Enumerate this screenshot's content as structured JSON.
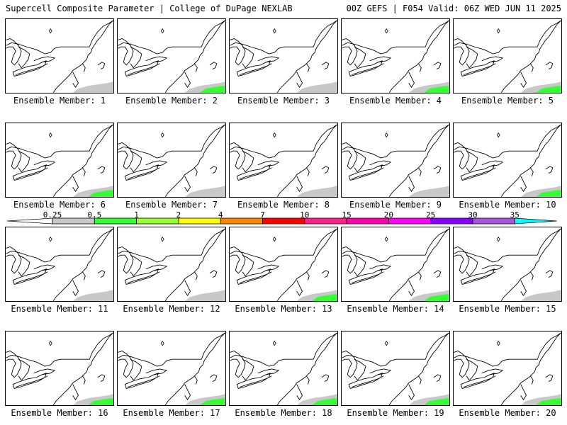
{
  "header": {
    "title": "Supercell Composite Parameter | College of DuPage NEXLAB",
    "run_info": "00Z GEFS | F054 Valid: 06Z WED JUN 11 2025"
  },
  "colors": {
    "land_outline": "#000000",
    "background": "#ffffff"
  },
  "colorbar": {
    "ticks": [
      "0.25",
      "0.5",
      "1",
      "2",
      "4",
      "7",
      "10",
      "15",
      "20",
      "25",
      "30",
      "35"
    ],
    "colors": [
      "#c8c8c8",
      "#33ff33",
      "#99ff33",
      "#ffff00",
      "#ff8800",
      "#ff0000",
      "#ff2288",
      "#ff00aa",
      "#ff00ff",
      "#8800ff",
      "#aa55dd",
      "#00ffff"
    ]
  },
  "members": [
    {
      "label": "Ensemble Member: 1",
      "max_class": "0.25"
    },
    {
      "label": "Ensemble Member: 2",
      "max_class": "0.5"
    },
    {
      "label": "Ensemble Member: 3",
      "max_class": "0.25"
    },
    {
      "label": "Ensemble Member: 4",
      "max_class": "0.5"
    },
    {
      "label": "Ensemble Member: 5",
      "max_class": "0.5"
    },
    {
      "label": "Ensemble Member: 6",
      "max_class": "0.5"
    },
    {
      "label": "Ensemble Member: 7",
      "max_class": "0.25"
    },
    {
      "label": "Ensemble Member: 8",
      "max_class": "0.25"
    },
    {
      "label": "Ensemble Member: 9",
      "max_class": "0.25"
    },
    {
      "label": "Ensemble Member: 10",
      "max_class": "0.5"
    },
    {
      "label": "Ensemble Member: 11",
      "max_class": "0.25"
    },
    {
      "label": "Ensemble Member: 12",
      "max_class": "0.25"
    },
    {
      "label": "Ensemble Member: 13",
      "max_class": "0.5"
    },
    {
      "label": "Ensemble Member: 14",
      "max_class": "0.5"
    },
    {
      "label": "Ensemble Member: 15",
      "max_class": "0.25"
    },
    {
      "label": "Ensemble Member: 16",
      "max_class": "0.5"
    },
    {
      "label": "Ensemble Member: 17",
      "max_class": "0.5"
    },
    {
      "label": "Ensemble Member: 18",
      "max_class": "0.5"
    },
    {
      "label": "Ensemble Member: 19",
      "max_class": "0.5"
    },
    {
      "label": "Ensemble Member: 20",
      "max_class": "0.5"
    }
  ]
}
